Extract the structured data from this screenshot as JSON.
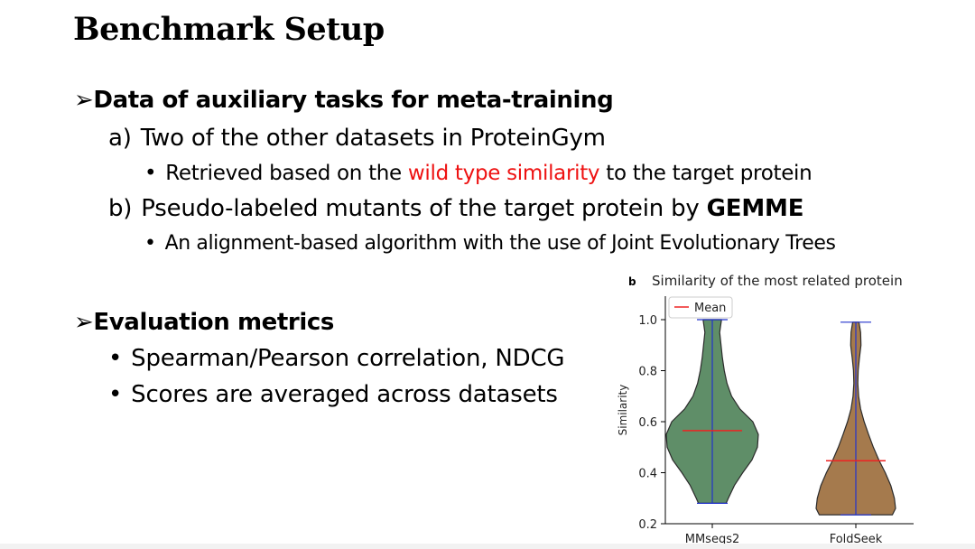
{
  "slide": {
    "title": "Benchmark Setup",
    "section1": {
      "arrow": "➢",
      "heading": "Data of auxiliary tasks for meta-training",
      "item_a": {
        "marker": "a)",
        "text": "Two of the other datasets in ProteinGym",
        "sub": {
          "bullet": "•",
          "text_before": "Retrieved based on the ",
          "highlight": "wild type similarity",
          "text_after": " to the target protein"
        }
      },
      "item_b": {
        "marker": "b)",
        "text_before": "Pseudo-labeled mutants of the target protein by ",
        "text_bold": "GEMME",
        "sub": {
          "bullet": "•",
          "text": "An alignment-based algorithm with the use of Joint Evolutionary Trees"
        }
      }
    },
    "section2": {
      "arrow": "➢",
      "heading": "Evaluation metrics",
      "bullets": [
        {
          "bullet": "•",
          "text": "Spearman/Pearson correlation, NDCG"
        },
        {
          "bullet": "•",
          "text": "Scores are averaged across datasets"
        }
      ]
    }
  },
  "chart_data": {
    "type": "violin",
    "panel_label": "b",
    "title": "Similarity of the most related protein",
    "xlabel": "",
    "ylabel": "Similarity",
    "categories": [
      "MMseqs2",
      "FoldSeek"
    ],
    "ylim": [
      0.2,
      1.0
    ],
    "yticks": [
      0.2,
      0.4,
      0.6,
      0.8,
      1.0
    ],
    "ytick_labels": [
      "0.2",
      "0.4",
      "0.6",
      "0.8",
      "1.0"
    ],
    "legend": {
      "entries": [
        "Mean"
      ],
      "placement": "top-left"
    },
    "colors": {
      "MMseqs2": "#5f8e68",
      "FoldSeek": "#a57a4d",
      "mean_line": "#ee2222",
      "extrema_line": "#2233cc"
    },
    "series": [
      {
        "name": "MMseqs2",
        "min": 0.28,
        "max": 1.0,
        "mean": 0.565,
        "density": [
          [
            0.28,
            0.3
          ],
          [
            0.3,
            0.35
          ],
          [
            0.35,
            0.48
          ],
          [
            0.4,
            0.66
          ],
          [
            0.45,
            0.86
          ],
          [
            0.5,
            0.98
          ],
          [
            0.55,
            1.0
          ],
          [
            0.6,
            0.88
          ],
          [
            0.65,
            0.6
          ],
          [
            0.7,
            0.42
          ],
          [
            0.75,
            0.32
          ],
          [
            0.8,
            0.26
          ],
          [
            0.85,
            0.22
          ],
          [
            0.9,
            0.19
          ],
          [
            0.95,
            0.16
          ],
          [
            1.0,
            0.2
          ]
        ]
      },
      {
        "name": "FoldSeek",
        "min": 0.235,
        "max": 0.99,
        "mean": 0.447,
        "density": [
          [
            0.235,
            0.92
          ],
          [
            0.26,
            1.0
          ],
          [
            0.3,
            0.97
          ],
          [
            0.35,
            0.88
          ],
          [
            0.4,
            0.74
          ],
          [
            0.45,
            0.58
          ],
          [
            0.5,
            0.44
          ],
          [
            0.55,
            0.32
          ],
          [
            0.6,
            0.21
          ],
          [
            0.65,
            0.12
          ],
          [
            0.7,
            0.07
          ],
          [
            0.75,
            0.05
          ],
          [
            0.8,
            0.06
          ],
          [
            0.85,
            0.09
          ],
          [
            0.9,
            0.13
          ],
          [
            0.95,
            0.12
          ],
          [
            0.99,
            0.08
          ]
        ]
      }
    ]
  }
}
